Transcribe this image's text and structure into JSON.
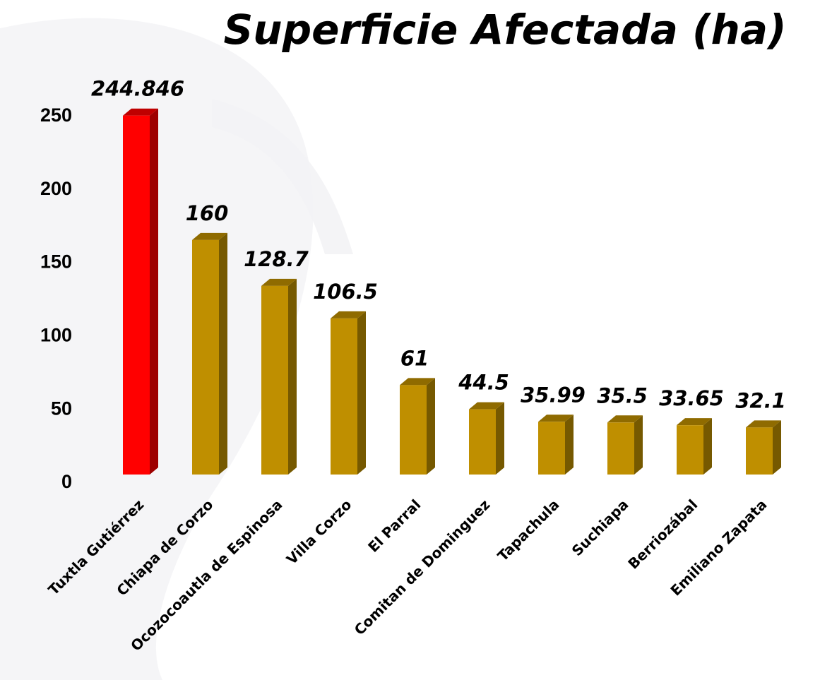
{
  "chart_data": {
    "type": "bar3d",
    "title": "Superficie Afectada (ha)",
    "categories": [
      "Tuxtla Gutiérrez",
      "Chiapa de Corzo",
      "Ocozocoautla de Espinosa",
      "Villa Corzo",
      "El Parral",
      "Comitan de Dominguez",
      "Tapachula",
      "Suchiapa",
      "Berriozábal",
      "Emiliano Zapata"
    ],
    "values": [
      244.846,
      160,
      128.7,
      106.5,
      61,
      44.5,
      35.99,
      35.5,
      33.65,
      32.1
    ],
    "colors": [
      "#ff0000",
      "#bf8f00",
      "#bf8f00",
      "#bf8f00",
      "#bf8f00",
      "#bf8f00",
      "#bf8f00",
      "#bf8f00",
      "#bf8f00",
      "#bf8f00"
    ],
    "ylim": [
      0,
      250
    ],
    "yticks": [
      0,
      50,
      100,
      150,
      200,
      250
    ],
    "grid": false
  }
}
